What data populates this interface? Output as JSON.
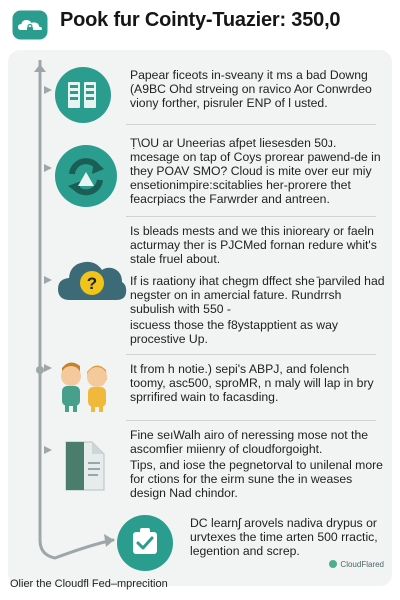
{
  "header": {
    "logo_icon": "cloud-logo-icon",
    "title": "Pook fur Cointy-Tuazier: 350,0"
  },
  "colors": {
    "teal": "#2a9d8f",
    "teal_dark": "#17645a",
    "cloud_blue": "#3c6a77",
    "flow_line": "#9ea7a8",
    "card_bg": "#f2f3f3"
  },
  "sections": [
    {
      "icon": "server-icon",
      "paragraphs": [
        "Papear ficeots in-sveany it ms a bad Downg (A9BC Ohd strveing on ravico Aor Conwrdeo viony forther, pisruler ENP of l usted."
      ]
    },
    {
      "icon": "recycle-arrows-icon",
      "paragraphs": [
        "Ṭ\\OU ar Uneerias afpet liesesden 50ᴊ. mcesage on tap of Coys prorear pawend-de in they POAV SMO? Cloud is mite over eur miy ensetionimpire:scitablies her-prorere thet feacrpiacs the Farwrder and antreen."
      ]
    },
    {
      "icon": "cloud-question-icon",
      "paragraphs": [
        "Is bleads mests and we this inioreary or faeln acturmay ther is PJCMed fornan redure whit's stale fruel about.",
        "If is raationy ihat chegm dffect she ̄parviled had negster on in amercial fature. Rundrrsh subulish with 550 -",
        "iscuess those the f8ystapptient as way procestive Up."
      ]
    },
    {
      "icon": "two-people-icon",
      "paragraphs": [
        "It from h notie.) sepi's ABPJ, and folench toomy, asc500, sproMR, n maly will lap in bry sprrifired wain to facasding."
      ]
    },
    {
      "icon": "document-icon",
      "paragraphs": [
        "Fine seıWalh airo of neressing mose not the ascomfier miienry of cloudforgoight.",
        "Tips, and iose the pegnetorval to unilenal more for ctions for the eirm sune the in weases design Nad chindor."
      ]
    },
    {
      "icon": "shield-check-icon",
      "paragraphs": [
        "DC learnʃ arovels nadiva drypus or urvtexes the time arten 500 rractic, legention and screp."
      ]
    }
  ],
  "badge": {
    "label": "CloudFlared"
  },
  "footer": {
    "text": "Olier the Cloudfl Fed–mprecition"
  }
}
